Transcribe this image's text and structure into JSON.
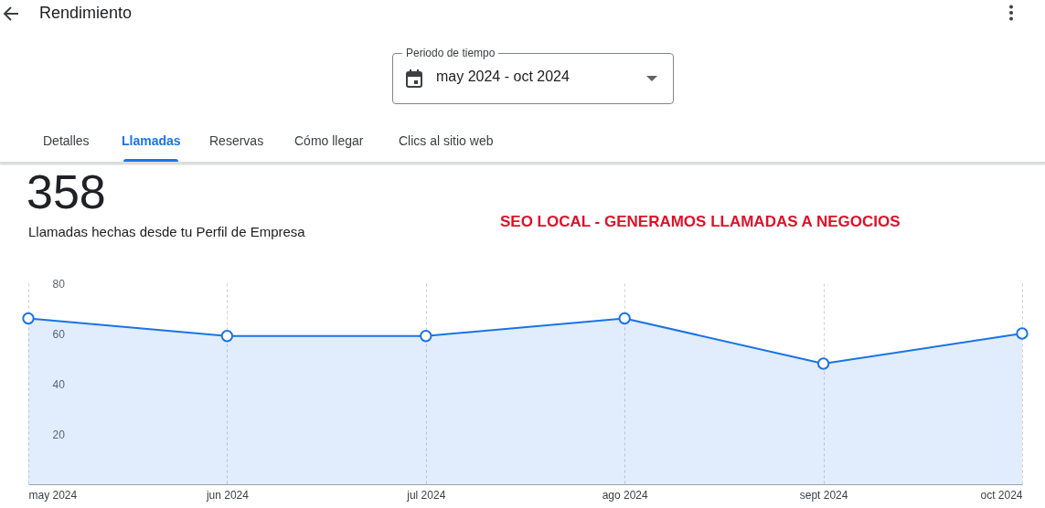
{
  "chart_data": {
    "type": "area",
    "title": "358",
    "subtitle": "Llamadas hechas desde tu Perfil de Empresa",
    "annotations": [
      "Rendimiento",
      "Periodo de tiempo",
      "may 2024 - oct 2024",
      "Detalles",
      "Llamadas",
      "Reservas",
      "Cómo llegar",
      "Clics al sitio web",
      "SEO LOCAL - GENERAMOS LLAMADAS A NEGOCIOS"
    ],
    "categories": [
      "may 2024",
      "jun 2024",
      "jul 2024",
      "ago 2024",
      "sept 2024",
      "oct 2024"
    ],
    "series": [
      {
        "color": "#1a73e8",
        "values": [
          66,
          59,
          59,
          66,
          48,
          60
        ]
      }
    ],
    "ylim": [
      0,
      80
    ],
    "yticks": [
      20,
      40,
      60,
      80
    ],
    "grid": "x",
    "marker": "circle",
    "line_style": "solid"
  }
}
